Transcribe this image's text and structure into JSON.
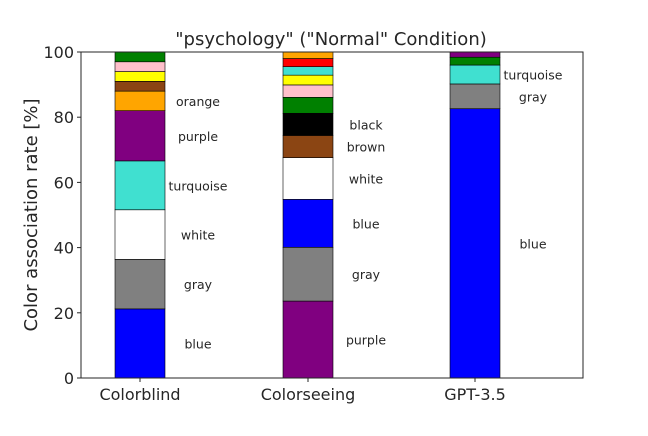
{
  "chart_data": {
    "type": "bar",
    "title": "\"psychology\" (\"Normal\" Condition)",
    "xlabel": "",
    "ylabel": "Color association rate [%]",
    "ylim": [
      0,
      100
    ],
    "yticks": [
      0,
      20,
      40,
      60,
      80,
      100
    ],
    "grid": false,
    "legend": "none",
    "categories": [
      "Colorblind",
      "Colorseeing",
      "GPT-3.5"
    ],
    "stacks": [
      {
        "category": "Colorblind",
        "segments": [
          {
            "color_name": "blue",
            "value": 21.2,
            "color": "#0000ff",
            "label": "blue"
          },
          {
            "color_name": "gray",
            "value": 15.2,
            "color": "#808080",
            "label": "gray"
          },
          {
            "color_name": "white",
            "value": 15.2,
            "color": "#ffffff",
            "label": "white"
          },
          {
            "color_name": "turquoise",
            "value": 15.0,
            "color": "#40e0d0",
            "label": "turquoise"
          },
          {
            "color_name": "purple",
            "value": 15.4,
            "color": "#800080",
            "label": "purple"
          },
          {
            "color_name": "orange",
            "value": 6.0,
            "color": "#ffa500",
            "label": "orange"
          },
          {
            "color_name": "brown",
            "value": 3.0,
            "color": "#8b4513",
            "label": ""
          },
          {
            "color_name": "yellow",
            "value": 3.0,
            "color": "#ffff00",
            "label": ""
          },
          {
            "color_name": "pink",
            "value": 3.0,
            "color": "#ffc0cb",
            "label": ""
          },
          {
            "color_name": "green",
            "value": 3.0,
            "color": "#008000",
            "label": ""
          }
        ]
      },
      {
        "category": "Colorseeing",
        "segments": [
          {
            "color_name": "purple",
            "value": 23.6,
            "color": "#800080",
            "label": "purple"
          },
          {
            "color_name": "gray",
            "value": 16.5,
            "color": "#808080",
            "label": "gray"
          },
          {
            "color_name": "blue",
            "value": 14.7,
            "color": "#0000ff",
            "label": "blue"
          },
          {
            "color_name": "white",
            "value": 12.8,
            "color": "#ffffff",
            "label": "white"
          },
          {
            "color_name": "brown",
            "value": 6.8,
            "color": "#8b4513",
            "label": "brown"
          },
          {
            "color_name": "black",
            "value": 6.8,
            "color": "#000000",
            "label": "black"
          },
          {
            "color_name": "green",
            "value": 4.9,
            "color": "#008000",
            "label": ""
          },
          {
            "color_name": "pink",
            "value": 3.8,
            "color": "#ffc0cb",
            "label": ""
          },
          {
            "color_name": "yellow",
            "value": 3.0,
            "color": "#ffff00",
            "label": ""
          },
          {
            "color_name": "turquoise",
            "value": 2.6,
            "color": "#40e0d0",
            "label": ""
          },
          {
            "color_name": "red",
            "value": 2.5,
            "color": "#ff0000",
            "label": ""
          },
          {
            "color_name": "orange",
            "value": 2.0,
            "color": "#ffa500",
            "label": ""
          }
        ]
      },
      {
        "category": "GPT-3.5",
        "segments": [
          {
            "color_name": "blue",
            "value": 82.6,
            "color": "#0000ff",
            "label": "blue"
          },
          {
            "color_name": "gray",
            "value": 7.6,
            "color": "#808080",
            "label": "gray"
          },
          {
            "color_name": "turquoise",
            "value": 5.8,
            "color": "#40e0d0",
            "label": "turquoise"
          },
          {
            "color_name": "green",
            "value": 2.4,
            "color": "#008000",
            "label": ""
          },
          {
            "color_name": "purple",
            "value": 1.6,
            "color": "#800080",
            "label": ""
          }
        ]
      }
    ]
  }
}
